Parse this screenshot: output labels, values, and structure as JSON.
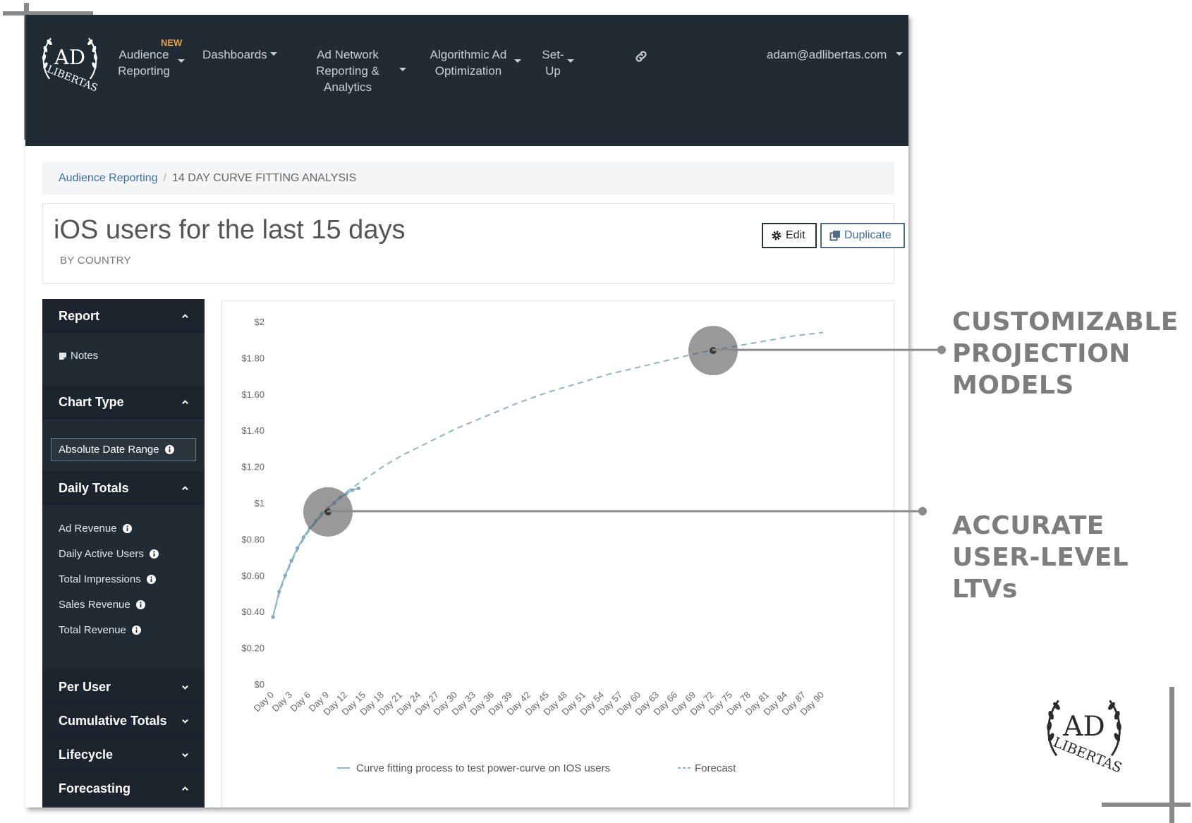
{
  "nav": {
    "new_badge": "NEW",
    "audience_reporting": "Audience Reporting",
    "dashboards": "Dashboards",
    "ad_network": "Ad Network Reporting & Analytics",
    "algorithmic": "Algorithmic Ad Optimization",
    "setup": "Set-Up",
    "user_email": "adam@adlibertas.com",
    "link_icon": "link-icon"
  },
  "breadcrumb": {
    "parent": "Audience Reporting",
    "current": "14 DAY CURVE FITTING ANALYSIS"
  },
  "page": {
    "title": "iOS users for the last 15 days",
    "subtitle": "BY COUNTRY",
    "edit_label": "Edit",
    "duplicate_label": "Duplicate"
  },
  "sidebar": {
    "report": "Report",
    "notes": "Notes",
    "chart_type": "Chart Type",
    "absolute_date_range": "Absolute Date Range",
    "daily_totals": "Daily Totals",
    "daily_items": [
      "Ad Revenue",
      "Daily Active Users",
      "Total Impressions",
      "Sales Revenue",
      "Total Revenue"
    ],
    "per_user": "Per User",
    "cumulative_totals": "Cumulative Totals",
    "lifecycle": "Lifecycle",
    "forecasting": "Forecasting"
  },
  "chart_data": {
    "type": "line",
    "y_ticks": [
      "$0",
      "$0.20",
      "$0.40",
      "$0.60",
      "$0.80",
      "$1",
      "$1.20",
      "$1.40",
      "$1.60",
      "$1.80",
      "$2"
    ],
    "ylim": [
      0,
      2
    ],
    "x_range": [
      0,
      90
    ],
    "x_ticks": [
      "Day 0",
      "Day 3",
      "Day 6",
      "Day 9",
      "Day 12",
      "Day 15",
      "Day 18",
      "Day 21",
      "Day 24",
      "Day 27",
      "Day 30",
      "Day 33",
      "Day 36",
      "Day 39",
      "Day 42",
      "Day 45",
      "Day 48",
      "Day 51",
      "Day 54",
      "Day 57",
      "Day 60",
      "Day 63",
      "Day 66",
      "Day 69",
      "Day 72",
      "Day 75",
      "Day 78",
      "Day 81",
      "Day 84",
      "Day 87",
      "Day 90"
    ],
    "series": [
      {
        "name": "Curve fitting process to test power-curve on IOS users",
        "style": "solid",
        "color": "#8cb3c9",
        "x": [
          0,
          1,
          2,
          3,
          4,
          5,
          6,
          7,
          8,
          9,
          10,
          11,
          12,
          13,
          14
        ],
        "y": [
          0.37,
          0.51,
          0.6,
          0.68,
          0.75,
          0.81,
          0.86,
          0.9,
          0.94,
          0.97,
          1.0,
          1.03,
          1.05,
          1.07,
          1.08
        ]
      },
      {
        "name": "Forecast",
        "style": "dashed",
        "color": "#8cb3c9",
        "x": [
          0,
          1,
          2,
          3,
          4,
          5,
          6,
          8,
          10,
          12,
          15,
          18,
          21,
          24,
          27,
          30,
          35,
          40,
          45,
          50,
          55,
          60,
          65,
          70,
          75,
          80,
          85,
          90
        ],
        "y": [
          0.37,
          0.5,
          0.59,
          0.67,
          0.74,
          0.8,
          0.85,
          0.93,
          1.0,
          1.06,
          1.13,
          1.2,
          1.26,
          1.31,
          1.36,
          1.41,
          1.48,
          1.55,
          1.61,
          1.66,
          1.71,
          1.75,
          1.79,
          1.83,
          1.86,
          1.89,
          1.92,
          1.94
        ]
      }
    ],
    "legend": "bottom",
    "grid": false,
    "highlights": [
      {
        "x": 9,
        "y": 0.95
      },
      {
        "x": 72,
        "y": 1.84
      }
    ]
  },
  "callouts": {
    "projection": [
      "CUSTOMIZABLE",
      "PROJECTION",
      "MODELS"
    ],
    "ltv": [
      "ACCURATE",
      "USER-LEVEL",
      "LTVs"
    ]
  }
}
